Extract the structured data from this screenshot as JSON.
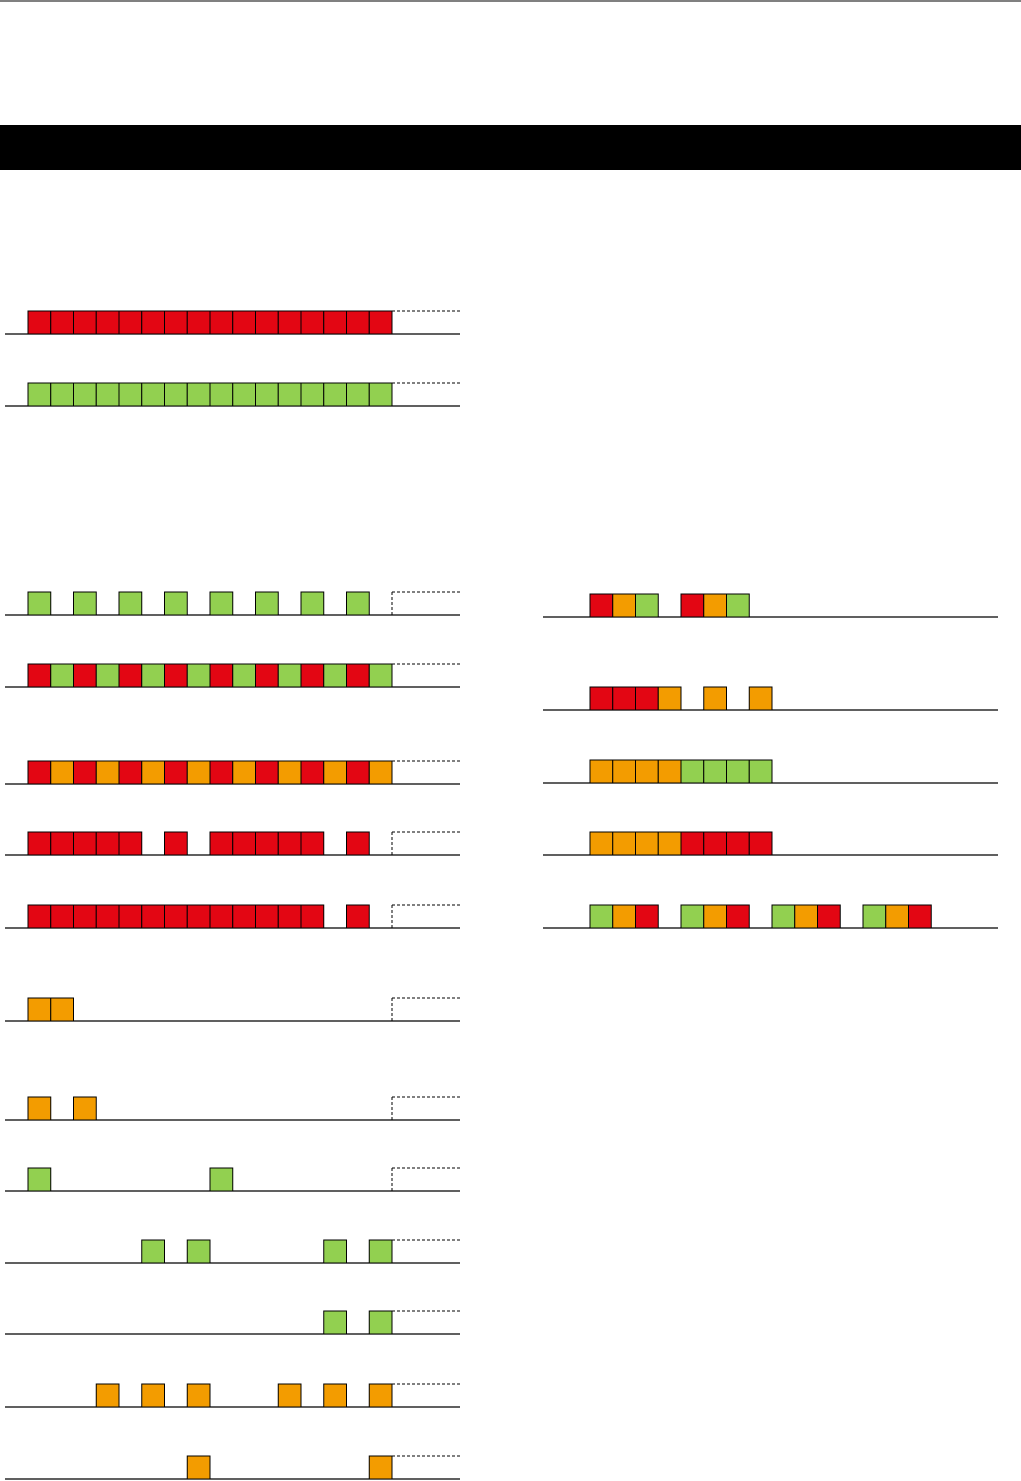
{
  "palette": {
    "r": "#e30613",
    "g": "#92d050",
    "o": "#f39c00"
  },
  "left_rows": [
    [
      "r",
      "r",
      "r",
      "r",
      "r",
      "r",
      "r",
      "r",
      "r",
      "r",
      "r",
      "r",
      "r",
      "r",
      "r",
      "r"
    ],
    [
      "g",
      "g",
      "g",
      "g",
      "g",
      "g",
      "g",
      "g",
      "g",
      "g",
      "g",
      "g",
      "g",
      "g",
      "g",
      "g"
    ],
    [
      "g",
      null,
      "g",
      null,
      "g",
      null,
      "g",
      null,
      "g",
      null,
      "g",
      null,
      "g",
      null,
      "g",
      null
    ],
    [
      "r",
      "g",
      "r",
      "g",
      "r",
      "g",
      "r",
      "g",
      "r",
      "g",
      "r",
      "g",
      "r",
      "g",
      "r",
      "g"
    ],
    [
      "r",
      "o",
      "r",
      "o",
      "r",
      "o",
      "r",
      "o",
      "r",
      "o",
      "r",
      "o",
      "r",
      "o",
      "r",
      "o"
    ],
    [
      "r",
      "r",
      "r",
      "r",
      "r",
      null,
      "r",
      null,
      "r",
      "r",
      "r",
      "r",
      "r",
      null,
      "r",
      null
    ],
    [
      "r",
      "r",
      "r",
      "r",
      "r",
      "r",
      "r",
      "r",
      "r",
      "r",
      "r",
      "r",
      "r",
      null,
      "r",
      null
    ],
    [
      "o",
      "o",
      null,
      null,
      null,
      null,
      null,
      null,
      null,
      null,
      null,
      null,
      null,
      null,
      null,
      null
    ],
    [
      "o",
      null,
      "o",
      null,
      null,
      null,
      null,
      null,
      null,
      null,
      null,
      null,
      null,
      null,
      null,
      null
    ],
    [
      "g",
      null,
      null,
      null,
      null,
      null,
      null,
      null,
      "g",
      null,
      null,
      null,
      null,
      null,
      null,
      null
    ],
    [
      null,
      null,
      null,
      null,
      null,
      "g",
      null,
      "g",
      null,
      null,
      null,
      null,
      null,
      "g",
      null,
      "g"
    ],
    [
      null,
      null,
      null,
      null,
      null,
      null,
      null,
      null,
      null,
      null,
      null,
      null,
      null,
      "g",
      null,
      "g"
    ],
    [
      null,
      null,
      null,
      "o",
      null,
      "o",
      null,
      "o",
      null,
      null,
      null,
      "o",
      null,
      "o",
      null,
      "o"
    ],
    [
      null,
      null,
      null,
      null,
      null,
      null,
      null,
      "o",
      null,
      null,
      null,
      null,
      null,
      null,
      null,
      "o"
    ]
  ],
  "right_rows": [
    [
      "r",
      "o",
      "g",
      null,
      "r",
      "o",
      "g"
    ],
    [
      "r",
      "r",
      "r",
      "o",
      null,
      "o",
      null,
      "o"
    ],
    [
      "o",
      "o",
      "o",
      "o",
      "g",
      "g",
      "g",
      "g"
    ],
    [
      "o",
      "o",
      "o",
      "o",
      "r",
      "r",
      "r",
      "r"
    ],
    [
      "g",
      "o",
      "r",
      null,
      "g",
      "o",
      "r",
      null,
      "g",
      "o",
      "r",
      null,
      "g",
      "o",
      "r"
    ]
  ]
}
